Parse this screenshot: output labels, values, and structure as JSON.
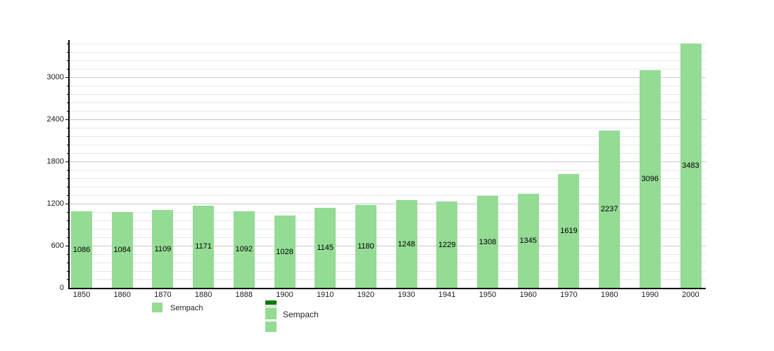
{
  "chart_data": {
    "type": "bar",
    "title": "",
    "xlabel": "",
    "ylabel": "",
    "categories": [
      "1850",
      "1860",
      "1870",
      "1880",
      "1888",
      "1900",
      "1910",
      "1920",
      "1930",
      "1941",
      "1950",
      "1960",
      "1970",
      "1980",
      "1990",
      "2000"
    ],
    "series": [
      {
        "name": "Sempach",
        "values": [
          1086,
          1084,
          1109,
          1171,
          1092,
          1028,
          1145,
          1180,
          1248,
          1229,
          1308,
          1345,
          1619,
          2237,
          3096,
          3483
        ]
      }
    ],
    "value_labels": "inside-middle",
    "ylim": [
      0,
      3530
    ],
    "ytick_values": [
      0,
      600,
      1200,
      1800,
      2400,
      3000
    ],
    "ytick_labels": [
      "0",
      "600",
      "1200",
      "1800",
      "2400",
      "3000"
    ],
    "minor_tick_step": 120,
    "grid": "on",
    "legend_position": "bottom"
  },
  "legend": {
    "primary": {
      "label": "Sempach"
    },
    "secondary": {
      "label": "Sempach"
    }
  },
  "colors": {
    "background": "#ffffff",
    "bar": "#94db94",
    "axis": "#000000",
    "grid_major": "#c8c8c8",
    "grid_minor": "#e7e7e7",
    "text": "#1a1a1a",
    "legend_swatch_green": "#94db94",
    "legend_swatch_dark_green": "#0a7a0a",
    "legend_swatch_pale": "#dde9d8"
  }
}
